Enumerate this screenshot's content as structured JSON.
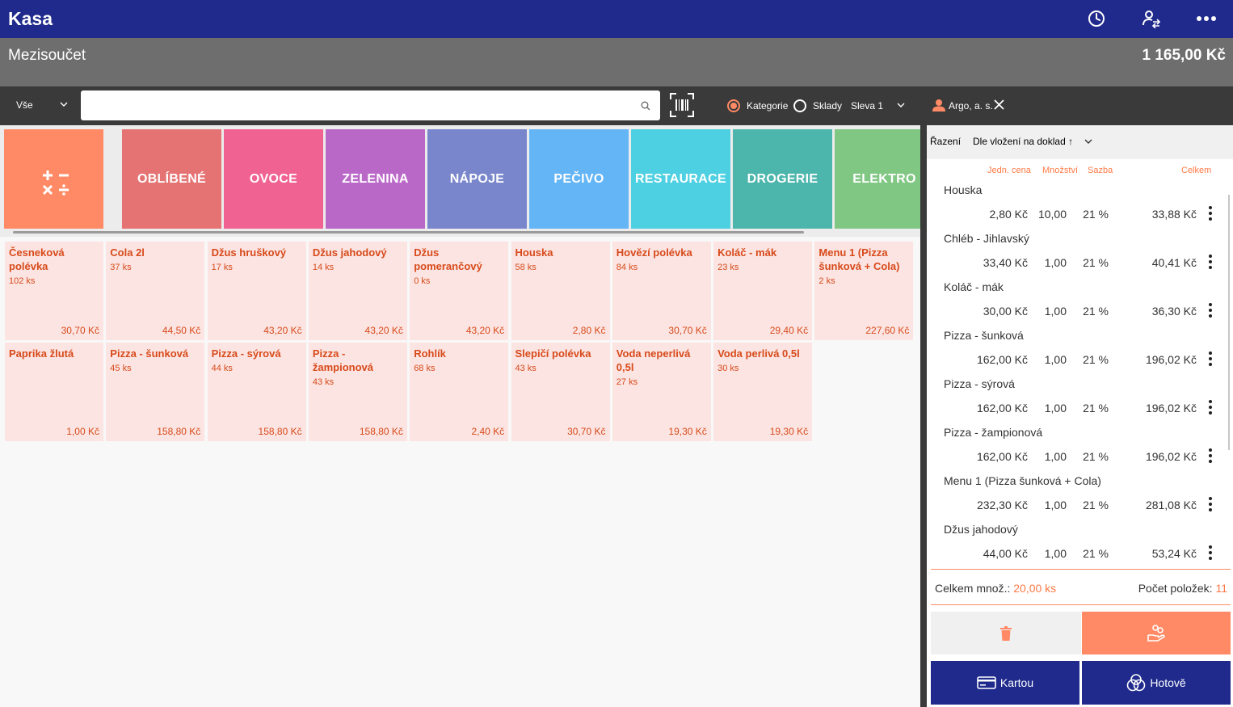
{
  "app": {
    "title": "Kasa"
  },
  "titlebar_icons": [
    "clock-icon",
    "user-swap-icon",
    "more-icon"
  ],
  "subtotal": {
    "label": "Mezisoučet",
    "value": "1 165,00 Kč"
  },
  "toolbar": {
    "filter": "Vše",
    "search": {
      "value": "",
      "placeholder": ""
    },
    "mode_options": [
      {
        "label": "Kategorie",
        "checked": true
      },
      {
        "label": "Sklady",
        "checked": false
      }
    ],
    "discount": "Sleva 1",
    "customer": "Argo, a. s."
  },
  "categories": [
    {
      "label": "OBLÍBENÉ",
      "color": "#e57373"
    },
    {
      "label": "OVOCE",
      "color": "#f06292"
    },
    {
      "label": "ZELENINA",
      "color": "#ba68c8"
    },
    {
      "label": "NÁPOJE",
      "color": "#7986cb"
    },
    {
      "label": "PEČIVO",
      "color": "#64b5f6"
    },
    {
      "label": "RESTAURACE",
      "color": "#4dd0e1"
    },
    {
      "label": "DROGERIE",
      "color": "#4db6ac"
    },
    {
      "label": "ELEKTRO",
      "color": "#81c784"
    }
  ],
  "products": [
    {
      "name": "Česneková polévka",
      "stock": "102 ks",
      "price": "30,70 Kč"
    },
    {
      "name": "Cola 2l",
      "stock": "37 ks",
      "price": "44,50 Kč"
    },
    {
      "name": "Džus hruškový",
      "stock": "17 ks",
      "price": "43,20 Kč"
    },
    {
      "name": "Džus jahodový",
      "stock": "14 ks",
      "price": "43,20 Kč"
    },
    {
      "name": "Džus pomerančový",
      "stock": "0 ks",
      "price": "43,20 Kč"
    },
    {
      "name": "Houska",
      "stock": "58 ks",
      "price": "2,80 Kč"
    },
    {
      "name": "Hovězí polévka",
      "stock": "84 ks",
      "price": "30,70 Kč"
    },
    {
      "name": "Koláč - mák",
      "stock": "23 ks",
      "price": "29,40 Kč"
    },
    {
      "name": "Menu 1 (Pizza šunková + Cola)",
      "stock": "2 ks",
      "price": "227,60 Kč"
    },
    {
      "name": "Paprika žlutá",
      "stock": "",
      "price": "1,00 Kč"
    },
    {
      "name": "Pizza - šunková",
      "stock": "45 ks",
      "price": "158,80 Kč"
    },
    {
      "name": "Pizza - sýrová",
      "stock": "44 ks",
      "price": "158,80 Kč"
    },
    {
      "name": "Pizza - žampionová",
      "stock": "43 ks",
      "price": "158,80 Kč"
    },
    {
      "name": "Rohlík",
      "stock": "68 ks",
      "price": "2,40 Kč"
    },
    {
      "name": "Slepičí polévka",
      "stock": "43 ks",
      "price": "30,70 Kč"
    },
    {
      "name": "Voda neperlivá 0,5l",
      "stock": "27 ks",
      "price": "19,30 Kč"
    },
    {
      "name": "Voda perlivá 0,5l",
      "stock": "30 ks",
      "price": "19,30 Kč"
    }
  ],
  "order": {
    "sort_label": "Řazení",
    "sort_value": "Dle vložení na doklad ↑",
    "columns": {
      "unit_price": "Jedn. cena",
      "qty": "Množství",
      "rate": "Sazba",
      "total": "Celkem"
    },
    "items": [
      {
        "name": "Houska",
        "unit_price": "2,80 Kč",
        "qty": "10,00",
        "rate": "21 %",
        "total": "33,88 Kč"
      },
      {
        "name": "Chléb - Jihlavský",
        "unit_price": "33,40 Kč",
        "qty": "1,00",
        "rate": "21 %",
        "total": "40,41 Kč"
      },
      {
        "name": "Koláč - mák",
        "unit_price": "30,00 Kč",
        "qty": "1,00",
        "rate": "21 %",
        "total": "36,30 Kč"
      },
      {
        "name": "Pizza - šunková",
        "unit_price": "162,00 Kč",
        "qty": "1,00",
        "rate": "21 %",
        "total": "196,02 Kč"
      },
      {
        "name": "Pizza - sýrová",
        "unit_price": "162,00 Kč",
        "qty": "1,00",
        "rate": "21 %",
        "total": "196,02 Kč"
      },
      {
        "name": "Pizza - žampionová",
        "unit_price": "162,00 Kč",
        "qty": "1,00",
        "rate": "21 %",
        "total": "196,02 Kč"
      },
      {
        "name": "Menu 1 (Pizza šunková + Cola)",
        "unit_price": "232,30 Kč",
        "qty": "1,00",
        "rate": "21 %",
        "total": "281,08 Kč"
      },
      {
        "name": "Džus jahodový",
        "unit_price": "44,00 Kč",
        "qty": "1,00",
        "rate": "21 %",
        "total": "53,24 Kč"
      }
    ],
    "summary": {
      "qty_label": "Celkem množ.:",
      "qty_value": "20,00 ks",
      "count_label": "Počet položek:",
      "count_value": "11"
    }
  },
  "actions": {
    "card_label": "Kartou",
    "cash_label": "Hotově"
  },
  "colors": {
    "accent": "#ff8a65",
    "primary": "#1f2a8c",
    "product_bg": "#fbe4e1",
    "product_text": "#d84a1b"
  }
}
